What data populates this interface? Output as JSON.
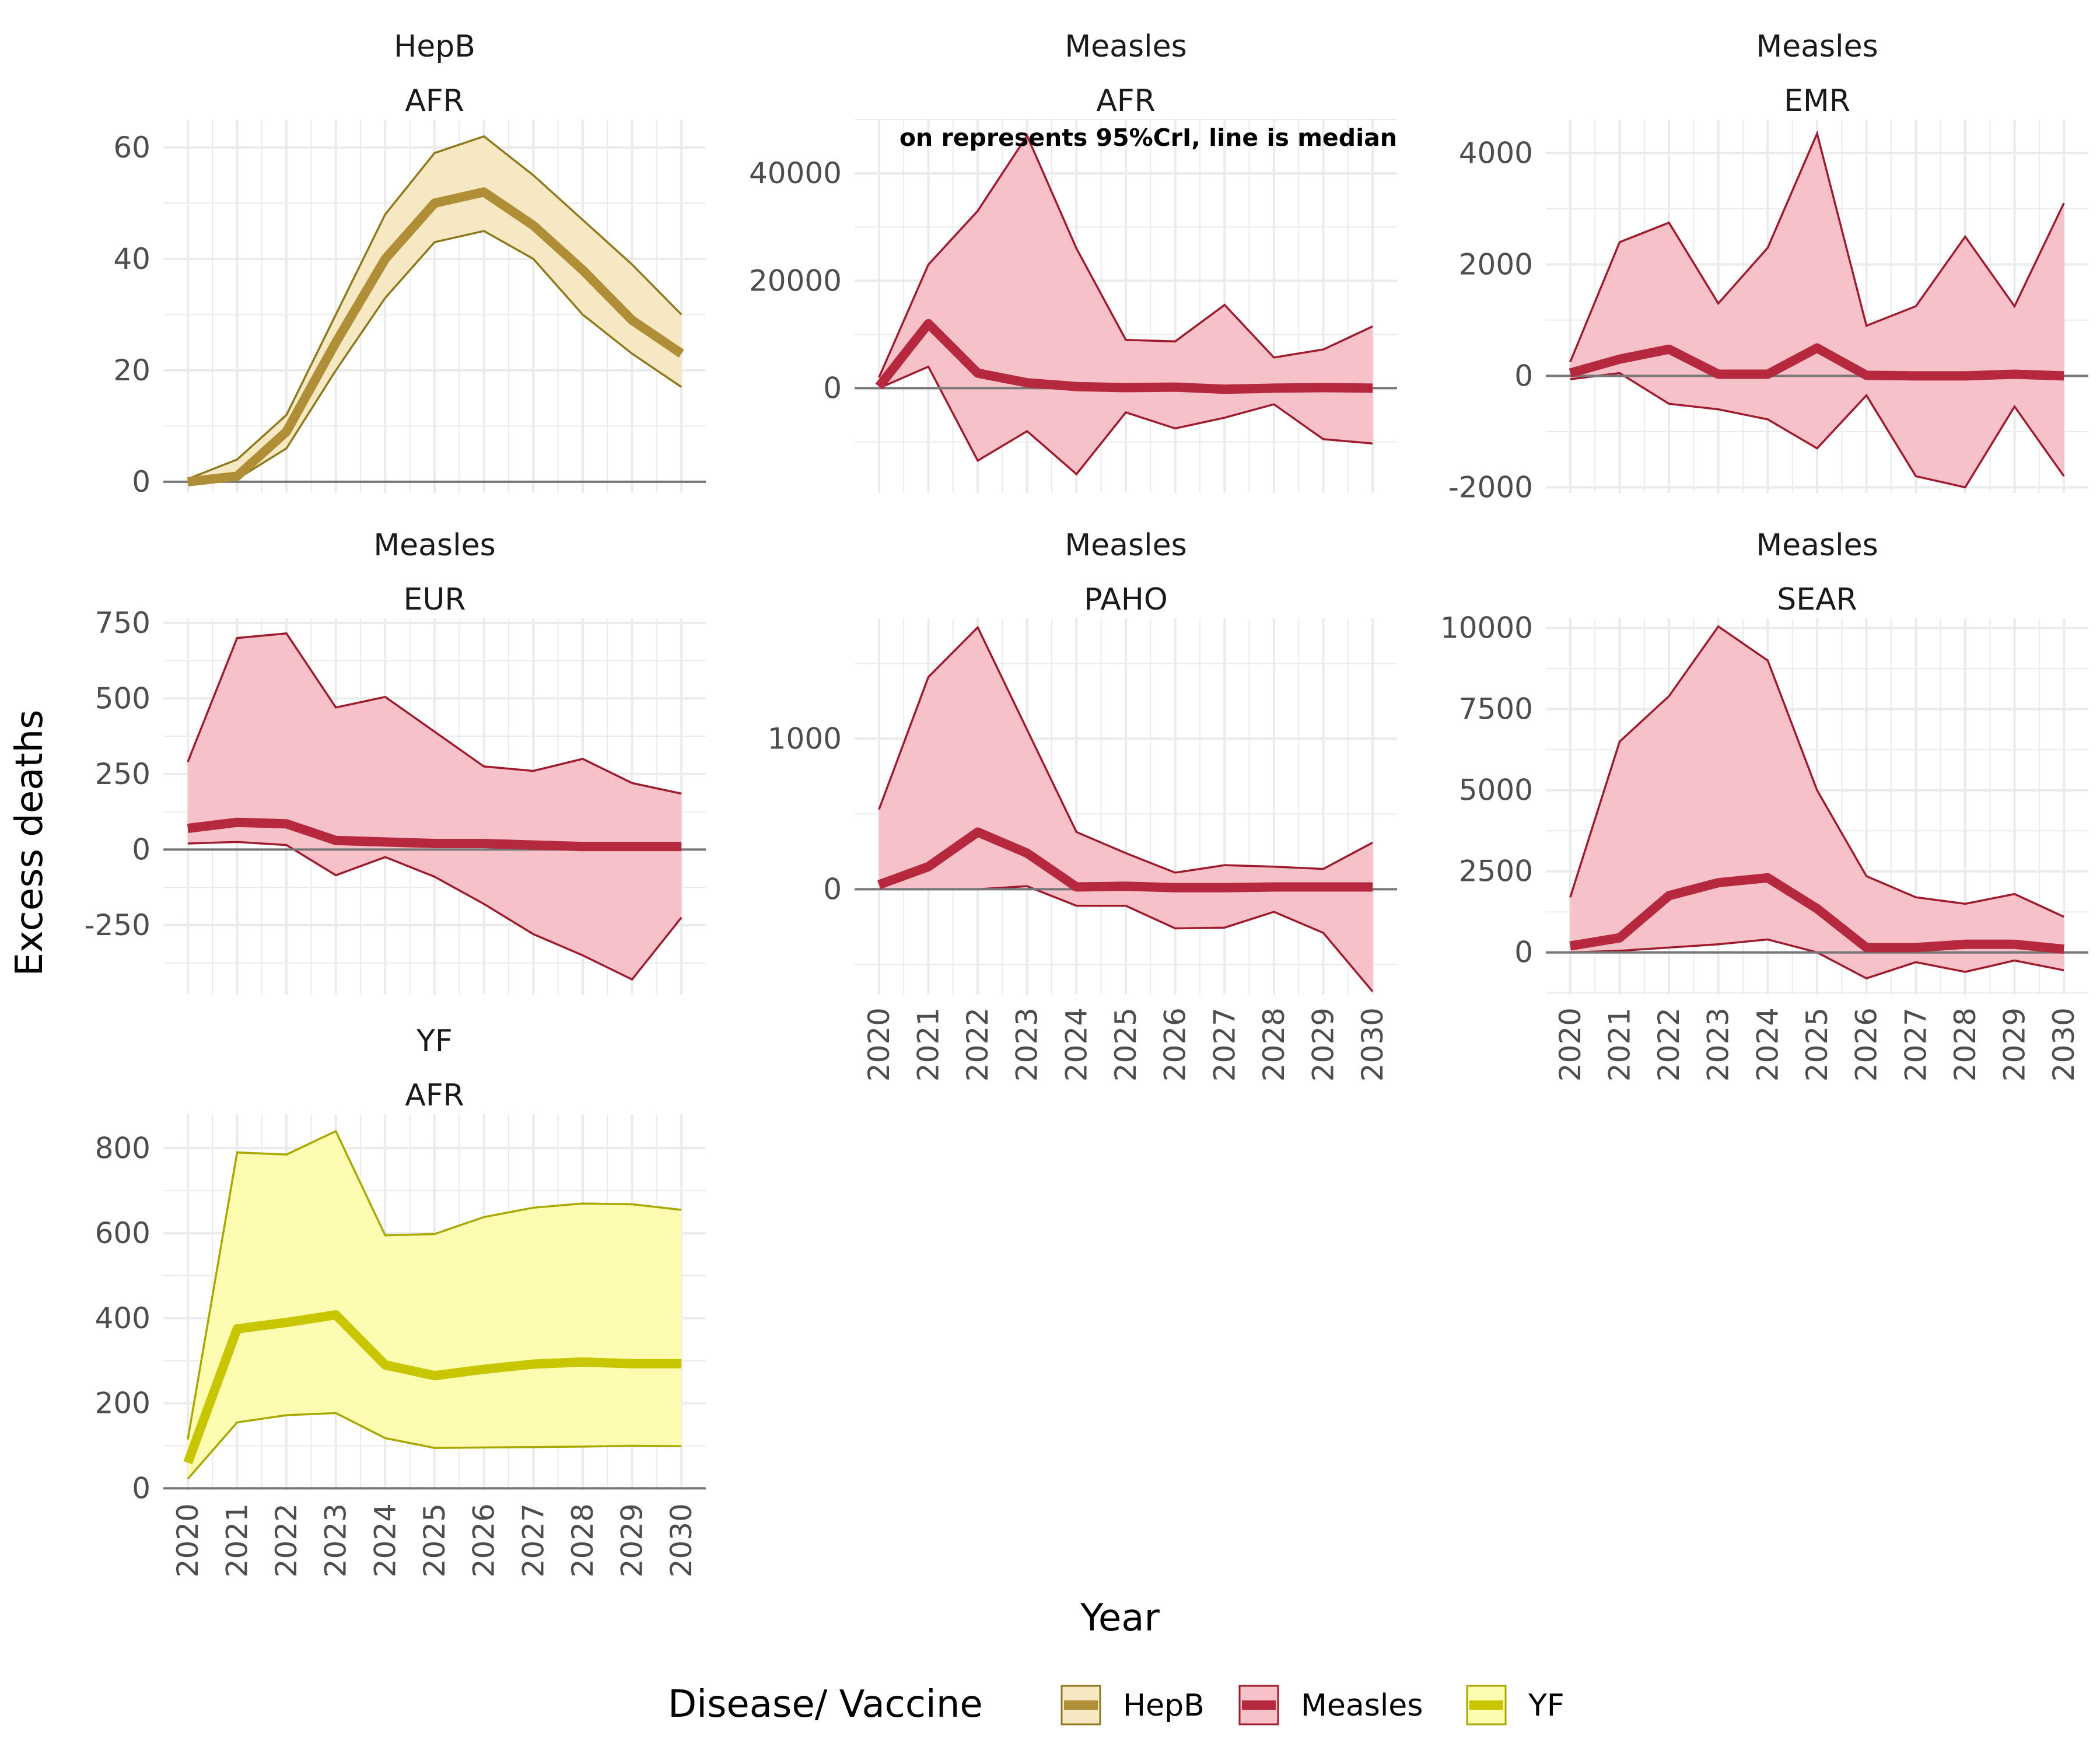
{
  "chart": {
    "type": "area",
    "x_axis_title": "Year",
    "y_axis_title": "Excess deaths",
    "annotation": "on represents 95%CrI, line is median",
    "legend": {
      "title": "Disease/ Vaccine",
      "position": "bottom",
      "items": [
        {
          "label": "HepB",
          "key": "HepB"
        },
        {
          "label": "Measles",
          "key": "Measles"
        },
        {
          "label": "YF",
          "key": "YF"
        }
      ]
    },
    "colors": {
      "HepB": {
        "line": "#b08d37",
        "fill": "#f6e8c3",
        "edge": "#8e7a1e"
      },
      "Measles": {
        "line": "#b5283d",
        "fill": "#f7c1c9",
        "edge": "#9e1b2e"
      },
      "YF": {
        "line": "#c8c600",
        "fill": "#fdfcb0",
        "edge": "#a8a800"
      },
      "grid": "#ebebeb",
      "zero_line": "#777777",
      "text": "#4d4d4d",
      "strip_text": "#1a1a1a"
    },
    "grid": true
  },
  "chart_data": {
    "type": "area",
    "x": [
      2020,
      2021,
      2022,
      2023,
      2024,
      2025,
      2026,
      2027,
      2028,
      2029,
      2030
    ],
    "x_ticks": [
      "2020",
      "2021",
      "2022",
      "2023",
      "2024",
      "2025",
      "2026",
      "2027",
      "2028",
      "2029",
      "2030"
    ],
    "panels": [
      {
        "disease": "HepB",
        "region": "AFR",
        "ylim": [
          -2,
          65
        ],
        "y_ticks": [
          0,
          20,
          40,
          60
        ],
        "y_tick_labels": [
          "0",
          "20",
          "40",
          "60"
        ],
        "median": [
          0,
          1,
          9,
          25,
          40,
          50,
          52,
          46,
          38,
          29,
          23
        ],
        "lower": [
          0,
          0.5,
          6,
          20,
          33,
          43,
          45,
          40,
          30,
          23,
          17
        ],
        "upper": [
          0.5,
          4,
          12,
          30,
          48,
          59,
          62,
          55,
          47,
          39,
          30
        ]
      },
      {
        "disease": "Measles",
        "region": "AFR",
        "ylim": [
          -19500,
          50000
        ],
        "y_ticks": [
          0,
          20000,
          40000
        ],
        "y_tick_labels": [
          "0",
          "20000",
          "40000"
        ],
        "median": [
          300,
          12000,
          2800,
          1000,
          300,
          100,
          200,
          -200,
          0,
          100,
          0
        ],
        "lower": [
          0,
          4000,
          -13500,
          -8000,
          -16000,
          -4500,
          -7500,
          -5500,
          -3000,
          -9500,
          -10300
        ],
        "upper": [
          2000,
          23000,
          33000,
          47000,
          26000,
          9000,
          8700,
          15500,
          5700,
          7200,
          11500
        ]
      },
      {
        "disease": "Measles",
        "region": "EMR",
        "ylim": [
          -2100,
          4600
        ],
        "y_ticks": [
          -2000,
          0,
          2000,
          4000
        ],
        "y_tick_labels": [
          "-2000",
          "0",
          "2000",
          "4000"
        ],
        "median": [
          50,
          300,
          480,
          30,
          30,
          500,
          10,
          0,
          0,
          30,
          0
        ],
        "lower": [
          -60,
          50,
          -500,
          -600,
          -780,
          -1300,
          -350,
          -1800,
          -2000,
          -550,
          -1800
        ],
        "upper": [
          250,
          2400,
          2750,
          1300,
          2300,
          4350,
          900,
          1250,
          2500,
          1250,
          3100
        ]
      },
      {
        "disease": "Measles",
        "region": "EUR",
        "ylim": [
          -480,
          765
        ],
        "y_ticks": [
          -250,
          0,
          250,
          500,
          750
        ],
        "y_tick_labels": [
          "-250",
          "0",
          "250",
          "500",
          "750"
        ],
        "median": [
          70,
          90,
          85,
          30,
          25,
          20,
          20,
          15,
          10,
          10,
          10
        ],
        "lower": [
          20,
          25,
          15,
          -85,
          -25,
          -90,
          -180,
          -280,
          -350,
          -430,
          -225
        ],
        "upper": [
          290,
          700,
          715,
          470,
          505,
          390,
          275,
          260,
          300,
          220,
          185
        ]
      },
      {
        "disease": "Measles",
        "region": "PAHO",
        "ylim": [
          -700,
          1800
        ],
        "y_ticks": [
          0,
          1000
        ],
        "y_tick_labels": [
          "0",
          "1000"
        ],
        "median": [
          30,
          150,
          380,
          240,
          15,
          20,
          10,
          10,
          15,
          15,
          15
        ],
        "lower": [
          0,
          0,
          0,
          20,
          -110,
          -110,
          -260,
          -255,
          -150,
          -290,
          -680
        ],
        "upper": [
          530,
          1410,
          1740,
          1060,
          380,
          240,
          110,
          160,
          150,
          135,
          310
        ]
      },
      {
        "disease": "Measles",
        "region": "SEAR",
        "ylim": [
          -1300,
          10300
        ],
        "y_ticks": [
          0,
          2500,
          5000,
          7500,
          10000
        ],
        "y_tick_labels": [
          "0",
          "2500",
          "5000",
          "7500",
          "10000"
        ],
        "median": [
          200,
          450,
          1750,
          2150,
          2300,
          1350,
          150,
          150,
          250,
          250,
          100
        ],
        "lower": [
          0,
          50,
          150,
          250,
          400,
          0,
          -800,
          -300,
          -600,
          -250,
          -550
        ],
        "upper": [
          1700,
          6500,
          7900,
          10050,
          9000,
          5000,
          2350,
          1700,
          1500,
          1800,
          1100
        ]
      },
      {
        "disease": "YF",
        "region": "AFR",
        "ylim": [
          -5,
          880
        ],
        "y_ticks": [
          0,
          200,
          400,
          600,
          800
        ],
        "y_tick_labels": [
          "0",
          "200",
          "400",
          "600",
          "800"
        ],
        "median": [
          60,
          375,
          390,
          408,
          290,
          265,
          280,
          292,
          297,
          293,
          293
        ],
        "lower": [
          22,
          155,
          172,
          177,
          118,
          95,
          96,
          97,
          98,
          100,
          99
        ],
        "upper": [
          115,
          790,
          785,
          840,
          595,
          598,
          638,
          660,
          670,
          668,
          655
        ]
      }
    ]
  }
}
